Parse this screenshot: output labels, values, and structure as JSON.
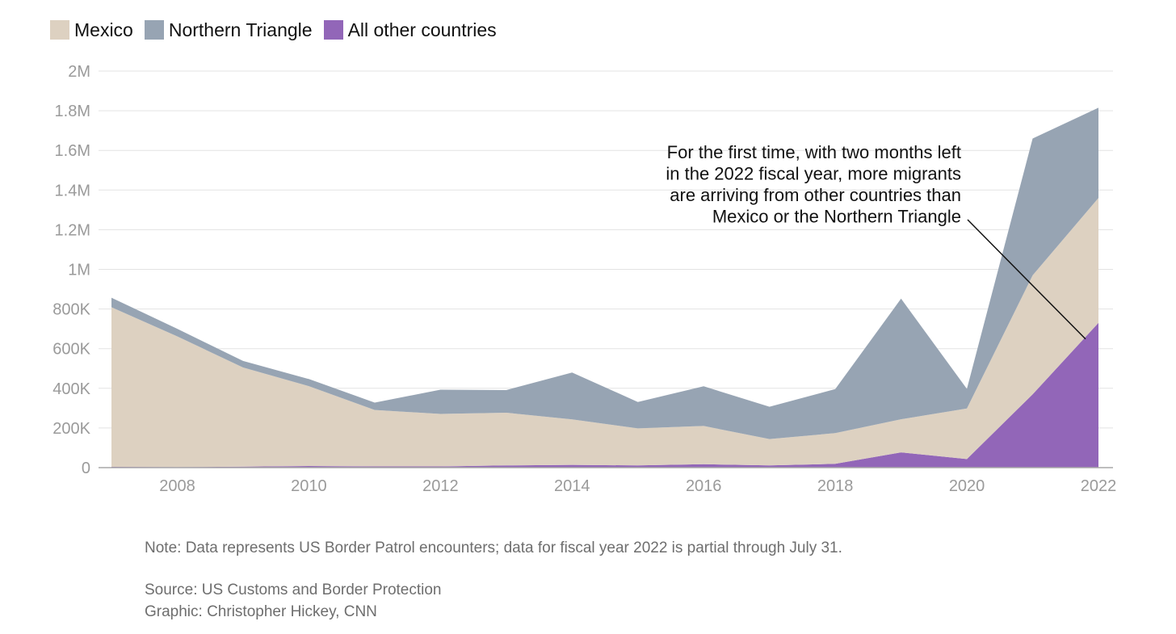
{
  "legend": [
    {
      "label": "Mexico",
      "color": "#ddd1c1"
    },
    {
      "label": "Northern Triangle",
      "color": "#97a4b3"
    },
    {
      "label": "All other countries",
      "color": "#9266b8"
    }
  ],
  "chart_data": {
    "type": "area",
    "stacked": true,
    "x": [
      2007,
      2008,
      2009,
      2010,
      2011,
      2012,
      2013,
      2014,
      2015,
      2016,
      2017,
      2018,
      2019,
      2020,
      2021,
      2022
    ],
    "series": [
      {
        "name": "All other countries",
        "color": "#9266b8",
        "values": [
          4000,
          3000,
          5000,
          8000,
          6000,
          6000,
          11000,
          14000,
          11000,
          17000,
          11000,
          19000,
          77000,
          43000,
          370000,
          730000
        ]
      },
      {
        "name": "Mexico",
        "color": "#ddd1c1",
        "values": [
          805000,
          659000,
          500000,
          403000,
          285000,
          265000,
          266000,
          229000,
          187000,
          193000,
          133000,
          155000,
          167000,
          255000,
          600000,
          630000
        ]
      },
      {
        "name": "Northern Triangle",
        "color": "#97a4b3",
        "values": [
          48000,
          38000,
          33000,
          36000,
          37000,
          122000,
          114000,
          237000,
          133000,
          200000,
          163000,
          222000,
          608000,
          99000,
          690000,
          455000
        ]
      }
    ],
    "y_ticks": [
      0,
      200000,
      400000,
      600000,
      800000,
      1000000,
      1200000,
      1400000,
      1600000,
      1800000,
      2000000
    ],
    "y_tick_labels": [
      "0",
      "200K",
      "400K",
      "600K",
      "800K",
      "1M",
      "1.2M",
      "1.4M",
      "1.6M",
      "1.8M",
      "2M"
    ],
    "x_ticks": [
      2008,
      2010,
      2012,
      2014,
      2016,
      2018,
      2020,
      2022
    ],
    "x_tick_labels": [
      "2008",
      "2010",
      "2012",
      "2014",
      "2016",
      "2018",
      "2020",
      "2022"
    ],
    "xlim": [
      2007,
      2022
    ],
    "ylim": [
      0,
      2000000
    ],
    "annotation": {
      "lines": [
        "For the first time, with two months left",
        "in the 2022 fiscal year, more migrants",
        "are arriving from other countries than",
        "Mexico or the Northern Triangle"
      ],
      "points_to": {
        "x": 2022,
        "y": 730000
      }
    }
  },
  "notes": {
    "note": "Note: Data represents US Border Patrol encounters; data for fiscal year 2022 is partial through July 31.",
    "source": "Source: US Customs and Border Protection",
    "credit": "Graphic: Christopher Hickey, CNN"
  }
}
